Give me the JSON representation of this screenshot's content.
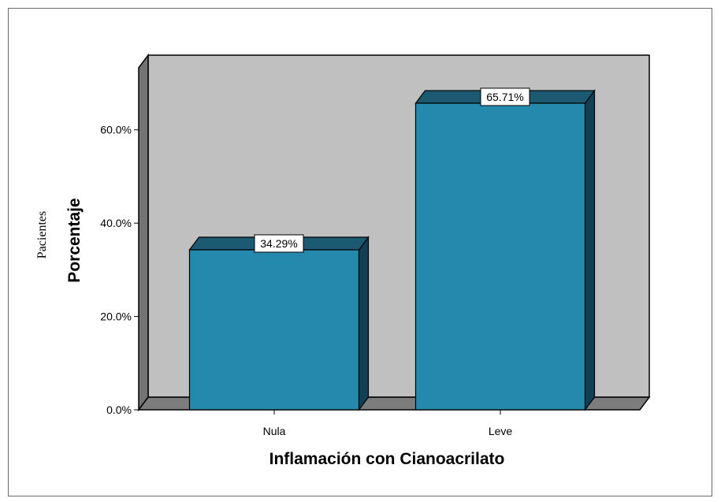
{
  "chart_data": {
    "type": "bar",
    "categories": [
      "Nula",
      "Leve"
    ],
    "values": [
      34.29,
      65.71
    ],
    "data_labels": [
      "34.29%",
      "65.71%"
    ],
    "title": "",
    "xlabel": "Inflamación con Cianoacrilato",
    "ylabel": "Porcentaje",
    "ylabel_secondary": "Pacientes",
    "yticks": [
      0,
      20,
      40,
      60
    ],
    "ytick_labels": [
      "0.0%",
      "20.0%",
      "40.0%",
      "60.0%"
    ],
    "ylim": [
      0,
      73.3
    ],
    "grid": false,
    "legend": "none",
    "style": "3d-bar"
  },
  "colors": {
    "bar_front": "#2589ad",
    "bar_top": "#1c5a72",
    "bar_side": "#143f52",
    "plot_back": "#c0c0c0",
    "plot_floor": "#7d7d7d",
    "plot_left_wall": "#737373"
  }
}
